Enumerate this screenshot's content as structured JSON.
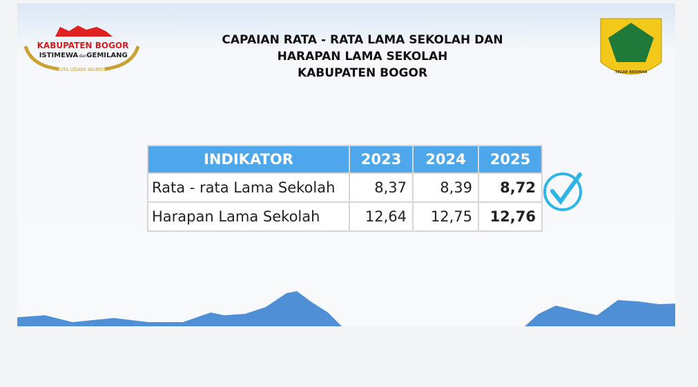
{
  "header": {
    "title_lines": [
      "CAPAIAN RATA - RATA LAMA SEKOLAH DAN",
      "HARAPAN LAMA SEKOLAH",
      "KABUPATEN BOGOR"
    ]
  },
  "left_logo": {
    "name": "KABUPATEN BOGOR",
    "motto_left": "ISTIMEWA",
    "motto_join": "dan",
    "motto_right": "GEMILANG",
    "tagline": "KUTA UDAYA WANGSA"
  },
  "right_logo": {
    "motto": "TEGAR BERIMAN"
  },
  "table": {
    "header": [
      "INDIKATOR",
      "2023",
      "2024",
      "2025"
    ],
    "rows": [
      [
        "Rata - rata Lama Sekolah",
        "8,37",
        "8,39",
        "8,72"
      ],
      [
        "Harapan Lama Sekolah",
        "12,64",
        "12,75",
        "12,76"
      ]
    ]
  }
}
